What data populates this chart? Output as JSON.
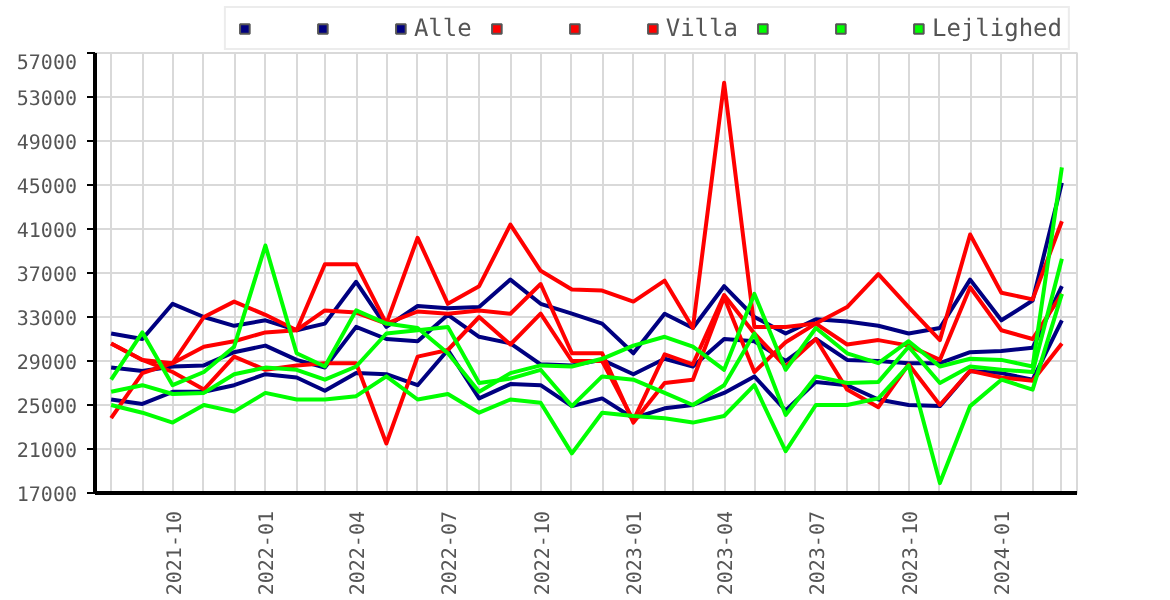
{
  "chart_data": {
    "type": "line",
    "x": [
      "2021-08",
      "2021-09",
      "2021-10",
      "2021-11",
      "2021-12",
      "2022-01",
      "2022-02",
      "2022-03",
      "2022-04",
      "2022-05",
      "2022-06",
      "2022-07",
      "2022-08",
      "2022-09",
      "2022-10",
      "2022-11",
      "2022-12",
      "2023-01",
      "2023-02",
      "2023-03",
      "2023-04",
      "2023-05",
      "2023-06",
      "2023-07",
      "2023-08",
      "2023-09",
      "2023-10",
      "2023-11",
      "2023-12",
      "2024-01",
      "2024-02",
      "2024-03"
    ],
    "series": [
      {
        "color": "#000080",
        "values": [
          31500,
          31000,
          34200,
          33000,
          32200,
          32700,
          31800,
          32400,
          36200,
          32100,
          34000,
          33800,
          33900,
          36400,
          34200,
          33300,
          32400,
          29700,
          33300,
          32000,
          35800,
          33000,
          31500,
          32800,
          32600,
          32200,
          31500,
          32000,
          36400,
          32700,
          34500,
          45200
        ]
      },
      {
        "color": "#000080",
        "values": [
          28400,
          28100,
          28500,
          28600,
          29800,
          30400,
          29100,
          28400,
          32100,
          31000,
          30800,
          33200,
          31200,
          30600,
          28700,
          28600,
          29100,
          27800,
          29200,
          28500,
          31000,
          30800,
          29000,
          31000,
          29100,
          29000,
          28800,
          28800,
          29800,
          29900,
          30200,
          35800
        ]
      },
      {
        "name": "Alle",
        "color": "#000080",
        "values": [
          25500,
          25100,
          26200,
          26200,
          26800,
          27800,
          27500,
          26300,
          27900,
          27800,
          26800,
          30000,
          25600,
          26900,
          26800,
          24900,
          25600,
          23800,
          24700,
          25000,
          26100,
          27600,
          24500,
          27100,
          26800,
          25500,
          25000,
          24900,
          28100,
          27900,
          27300,
          32700
        ]
      },
      {
        "color": "#ff0000",
        "values": [
          23800,
          27900,
          28800,
          33000,
          34400,
          33200,
          31800,
          37800,
          37800,
          32400,
          40200,
          34200,
          35800,
          41400,
          37200,
          35500,
          35400,
          34400,
          36300,
          32000,
          54300,
          32100,
          32100,
          32400,
          33900,
          36900,
          33900,
          30900,
          40500,
          35200,
          34600,
          41700
        ]
      },
      {
        "color": "#ff0000",
        "values": [
          30600,
          29100,
          28800,
          30300,
          30800,
          31600,
          31800,
          33600,
          33400,
          32400,
          33500,
          33300,
          33600,
          33300,
          36000,
          29700,
          29700,
          23400,
          27000,
          27300,
          34800,
          28000,
          30700,
          32400,
          30500,
          30900,
          30400,
          29100,
          35700,
          31800,
          31000,
          35100
        ]
      },
      {
        "name": "Villa",
        "color": "#ff0000",
        "values": [
          30600,
          29100,
          28000,
          26400,
          29400,
          28200,
          28600,
          28800,
          28800,
          21500,
          29400,
          30000,
          33000,
          30500,
          33300,
          29000,
          29000,
          23600,
          29600,
          28700,
          35000,
          31500,
          28500,
          31000,
          26400,
          24800,
          28700,
          25000,
          28100,
          27500,
          27200,
          30600
        ]
      },
      {
        "color": "#00ff00",
        "values": [
          27300,
          31600,
          26800,
          28000,
          30300,
          39500,
          29700,
          28500,
          33600,
          32400,
          32000,
          29700,
          26200,
          27900,
          28600,
          28500,
          29200,
          30400,
          31200,
          30300,
          28200,
          35100,
          28200,
          32000,
          29700,
          28800,
          30800,
          28500,
          29200,
          29100,
          28500,
          46600
        ]
      },
      {
        "color": "#00ff00",
        "values": [
          26200,
          26800,
          26000,
          26100,
          27800,
          28400,
          28200,
          27300,
          28500,
          31500,
          31800,
          32100,
          27000,
          27400,
          28200,
          24900,
          27600,
          27300,
          26100,
          25000,
          26800,
          31500,
          24100,
          27600,
          27000,
          27100,
          30300,
          27000,
          28500,
          28200,
          28000,
          38300
        ]
      },
      {
        "name": "Lejlighed",
        "color": "#00ff00",
        "values": [
          25000,
          24300,
          23400,
          25000,
          24400,
          26100,
          25500,
          25500,
          25800,
          27600,
          25500,
          26000,
          24300,
          25500,
          25200,
          20600,
          24300,
          24000,
          23800,
          23400,
          24000,
          26800,
          20800,
          25000,
          25000,
          25600,
          28600,
          17900,
          24900,
          27300,
          26400,
          35100
        ]
      }
    ],
    "xlim": [
      "2021-07-16",
      "2024-03-16"
    ],
    "xticks": [
      {
        "value": "2021-08",
        "label": null
      },
      {
        "value": "2021-09",
        "label": null
      },
      {
        "value": "2021-10",
        "label": "2021-10"
      },
      {
        "value": "2021-11",
        "label": null
      },
      {
        "value": "2021-12",
        "label": null
      },
      {
        "value": "2022-01",
        "label": "2022-01"
      },
      {
        "value": "2022-02",
        "label": null
      },
      {
        "value": "2022-03",
        "label": null
      },
      {
        "value": "2022-04",
        "label": "2022-04"
      },
      {
        "value": "2022-05",
        "label": null
      },
      {
        "value": "2022-06",
        "label": null
      },
      {
        "value": "2022-07",
        "label": "2022-07"
      },
      {
        "value": "2022-08",
        "label": null
      },
      {
        "value": "2022-09",
        "label": null
      },
      {
        "value": "2022-10",
        "label": "2022-10"
      },
      {
        "value": "2022-11",
        "label": null
      },
      {
        "value": "2022-12",
        "label": null
      },
      {
        "value": "2023-01",
        "label": "2023-01"
      },
      {
        "value": "2023-02",
        "label": null
      },
      {
        "value": "2023-03",
        "label": null
      },
      {
        "value": "2023-04",
        "label": "2023-04"
      },
      {
        "value": "2023-05",
        "label": null
      },
      {
        "value": "2023-06",
        "label": null
      },
      {
        "value": "2023-07",
        "label": "2023-07"
      },
      {
        "value": "2023-08",
        "label": null
      },
      {
        "value": "2023-09",
        "label": null
      },
      {
        "value": "2023-10",
        "label": "2023-10"
      },
      {
        "value": "2023-11",
        "label": null
      },
      {
        "value": "2023-12",
        "label": null
      },
      {
        "value": "2024-01",
        "label": "2024-01"
      },
      {
        "value": "2024-02",
        "label": null
      },
      {
        "value": "2024-03",
        "label": null
      }
    ],
    "ylim": [
      17000,
      57000
    ],
    "yticks": [
      17000,
      21000,
      25000,
      29000,
      33000,
      37000,
      41000,
      45000,
      49000,
      53000,
      57000
    ],
    "grid": true,
    "legend": "top right",
    "marker": "none",
    "line_style": "solid"
  }
}
